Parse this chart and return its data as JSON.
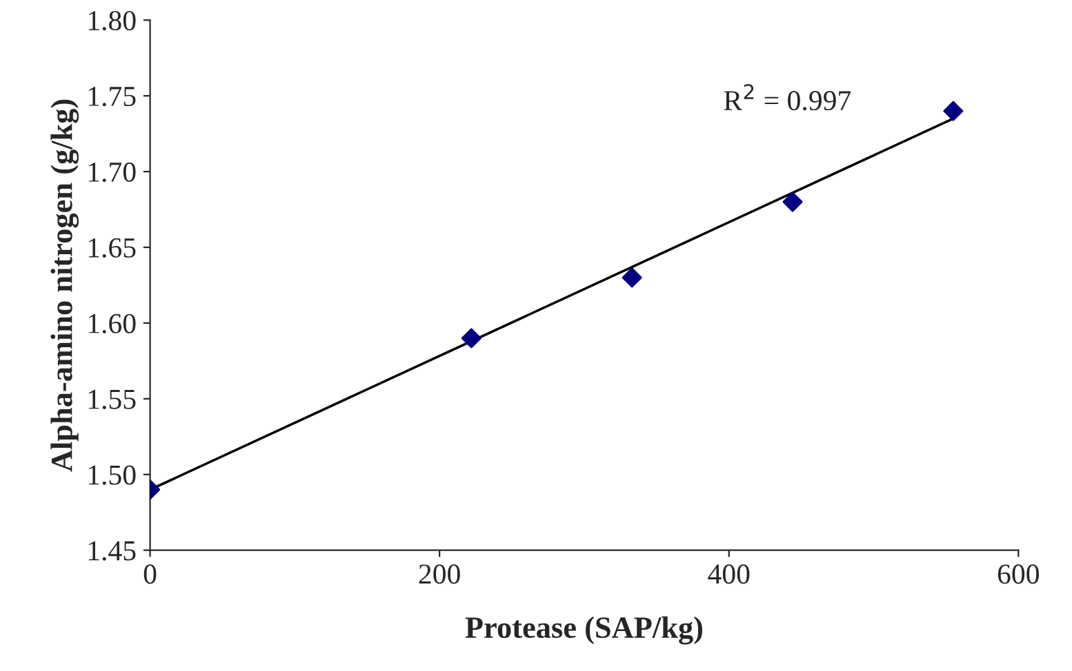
{
  "chart_data": {
    "type": "scatter",
    "xlabel": "Protease (SAP/kg)",
    "ylabel": "Alpha-amino nitrogen (g/kg)",
    "series": [
      {
        "color": "#000080",
        "marker": "diamond",
        "x": [
          0,
          222,
          333,
          444,
          555
        ],
        "values": [
          1.49,
          1.59,
          1.63,
          1.68,
          1.74
        ]
      },
      {
        "type": "line",
        "color": "#000000",
        "marker": "none",
        "line_style": "solid",
        "x": [
          0,
          555
        ],
        "values": [
          1.49,
          1.735
        ]
      }
    ],
    "annotations": [
      "R$^{2}$ = 0.997"
    ],
    "xlim": [
      0,
      600
    ],
    "xticks": [
      0,
      200,
      400,
      600
    ],
    "ylim": [
      1.45,
      1.8
    ],
    "yticks": [
      1.45,
      {
        "value": 1.5,
        "label": "1.50"
      },
      1.55,
      {
        "value": 1.6,
        "label": "1.60"
      },
      1.65,
      {
        "value": 1.7,
        "label": "1.70"
      },
      1.75,
      {
        "value": 1.8,
        "label": "1.80"
      }
    ],
    "grid": false,
    "legend": false
  }
}
